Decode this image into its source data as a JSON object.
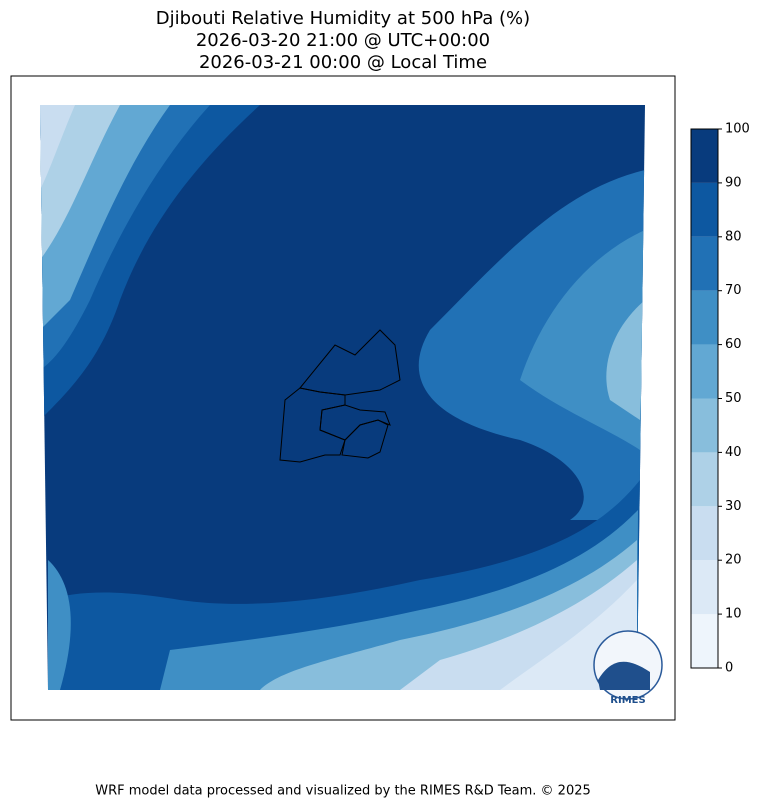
{
  "title": [
    "Djibouti Relative Humidity at 500 hPa (%)",
    "2026-03-20 21:00 @ UTC+00:00",
    "2026-03-21 00:00 @ Local Time"
  ],
  "colorbar": {
    "ticks": [
      0,
      10,
      20,
      30,
      40,
      50,
      60,
      70,
      80,
      90,
      100
    ],
    "colors": [
      "#eef5fc",
      "#dce9f6",
      "#c9ddf0",
      "#aed1e7",
      "#88bedc",
      "#62a8d3",
      "#3f8fc5",
      "#2171b5",
      "#0d58a1",
      "#083b7d"
    ]
  },
  "logo": "RIMES",
  "footer": "WRF model data processed and visualized by the RIMES R&D Team. © 2025"
}
